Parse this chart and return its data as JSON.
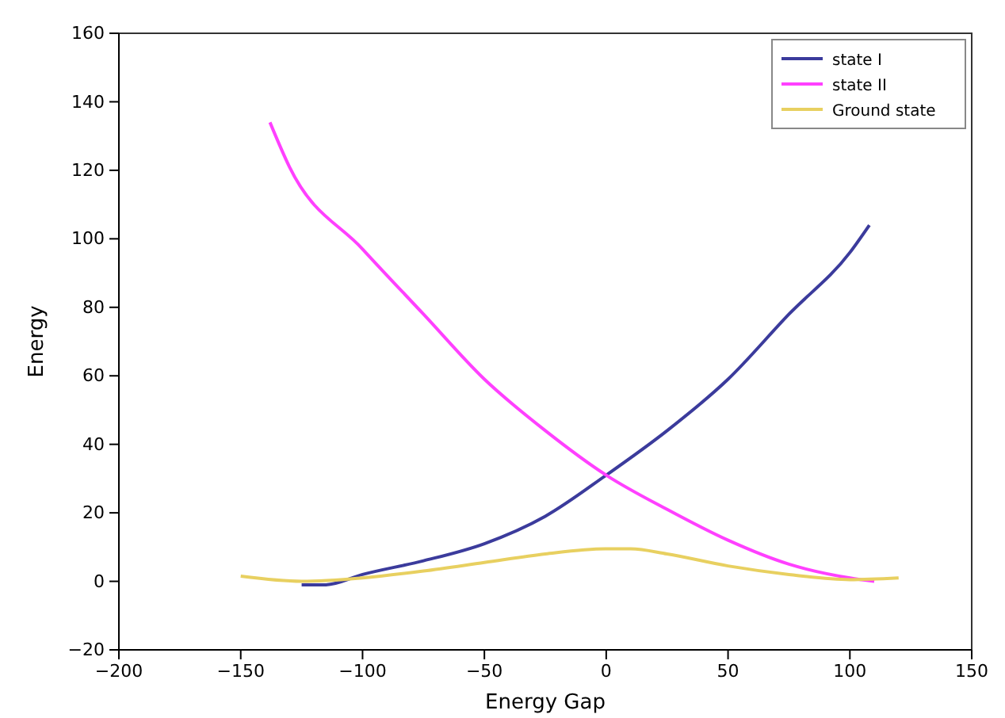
{
  "chart_data": {
    "type": "line",
    "xlabel": "Energy Gap",
    "ylabel": "Energy",
    "xlim": [
      -200,
      150
    ],
    "xticks": [
      {
        "value": -200,
        "label": "−200"
      },
      {
        "value": -150,
        "label": "−150"
      },
      {
        "value": -100,
        "label": "−100"
      },
      {
        "value": -50,
        "label": "−50"
      },
      0,
      50,
      100,
      150
    ],
    "ylim": [
      -20,
      160
    ],
    "yticks": [
      {
        "value": -20,
        "label": "−20"
      },
      0,
      20,
      40,
      60,
      80,
      100,
      120,
      140,
      160
    ],
    "legend": "top right",
    "grid": false,
    "series": [
      {
        "name": "state I",
        "color": "#3b3b9c",
        "x": [
          -125,
          -115,
          -100,
          -75,
          -50,
          -25,
          0,
          25,
          50,
          75,
          100,
          108
        ],
        "values": [
          -1,
          -1,
          2,
          6,
          11,
          19,
          31,
          44,
          59,
          78,
          96,
          104
        ]
      },
      {
        "name": "state II",
        "color": "#ff40ff",
        "x": [
          -138,
          -130,
          -100,
          -75,
          -50,
          -25,
          0,
          25,
          50,
          75,
          100,
          110
        ],
        "values": [
          134,
          121,
          97,
          78,
          59,
          44,
          31,
          21,
          12,
          5,
          1,
          0
        ]
      },
      {
        "name": "Ground state",
        "color": "#e8d060",
        "x": [
          -150,
          -125,
          -100,
          -75,
          -50,
          -25,
          0,
          10,
          25,
          50,
          75,
          100,
          120
        ],
        "values": [
          1.5,
          0,
          1,
          3,
          5.5,
          8,
          9.5,
          9.5,
          8,
          4.5,
          2,
          0.5,
          1
        ]
      }
    ]
  }
}
